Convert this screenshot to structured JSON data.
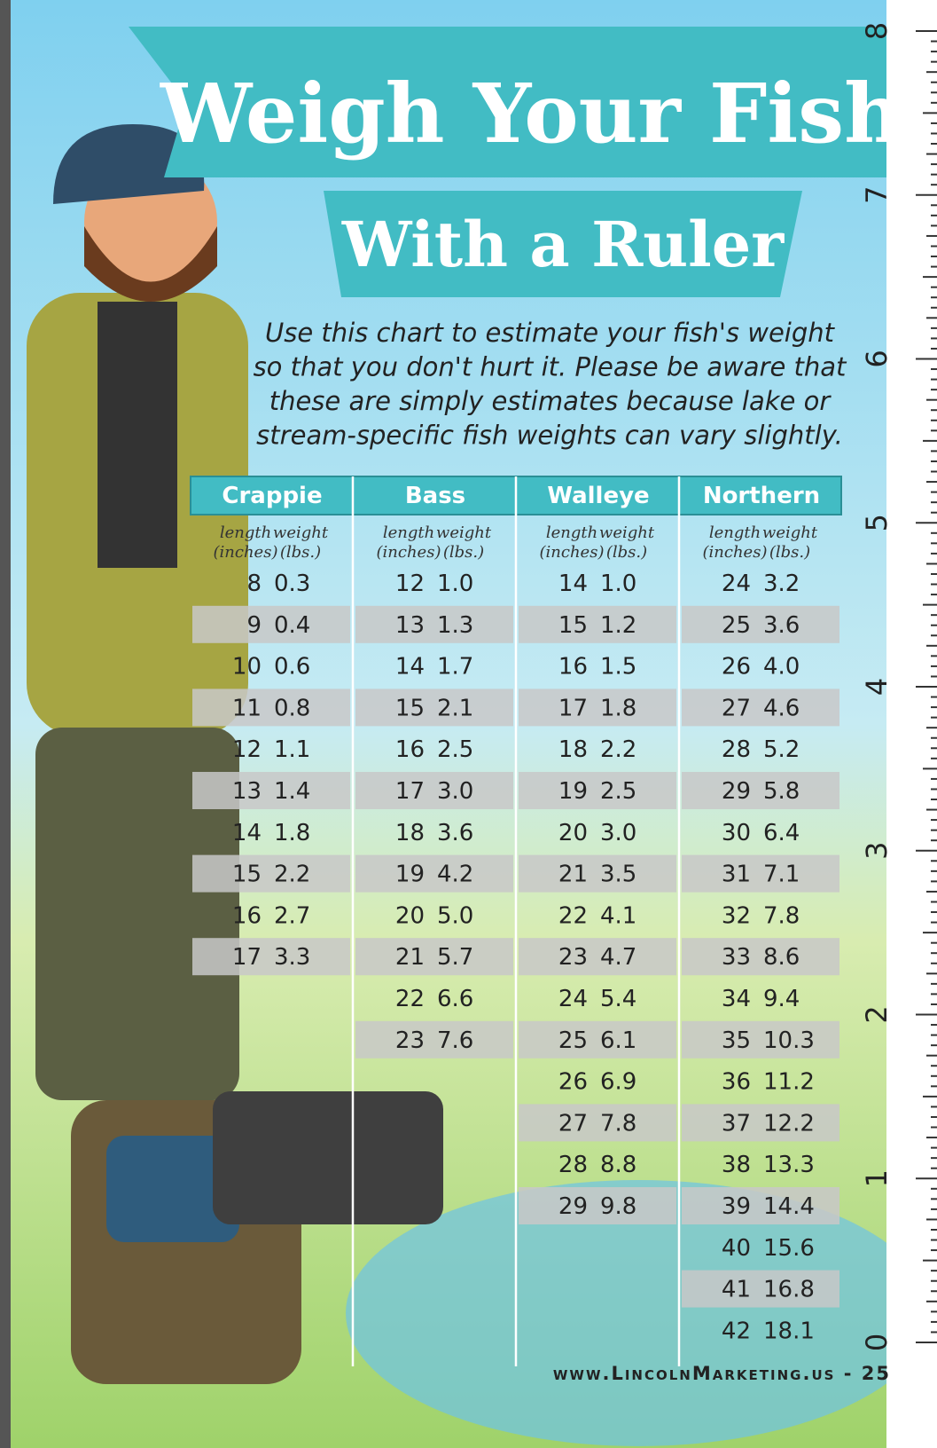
{
  "header": {
    "title": "Weigh Your Fish",
    "subtitle": "With a Ruler"
  },
  "intro": {
    "lines": [
      "Use this chart to estimate your fish's weight",
      "so that you don't hurt it. Please be aware that",
      "these are simply estimates because lake or",
      "stream-specific fish weights can vary slightly."
    ]
  },
  "table": {
    "column_headers": {
      "length": [
        "length",
        "(inches)"
      ],
      "weight": [
        "weight",
        "(lbs.)"
      ]
    },
    "fish": [
      {
        "name": "Crappie",
        "rows": [
          [
            "8",
            "0.3"
          ],
          [
            "9",
            "0.4"
          ],
          [
            "10",
            "0.6"
          ],
          [
            "11",
            "0.8"
          ],
          [
            "12",
            "1.1"
          ],
          [
            "13",
            "1.4"
          ],
          [
            "14",
            "1.8"
          ],
          [
            "15",
            "2.2"
          ],
          [
            "16",
            "2.7"
          ],
          [
            "17",
            "3.3"
          ]
        ]
      },
      {
        "name": "Bass",
        "rows": [
          [
            "12",
            "1.0"
          ],
          [
            "13",
            "1.3"
          ],
          [
            "14",
            "1.7"
          ],
          [
            "15",
            "2.1"
          ],
          [
            "16",
            "2.5"
          ],
          [
            "17",
            "3.0"
          ],
          [
            "18",
            "3.6"
          ],
          [
            "19",
            "4.2"
          ],
          [
            "20",
            "5.0"
          ],
          [
            "21",
            "5.7"
          ],
          [
            "22",
            "6.6"
          ],
          [
            "23",
            "7.6"
          ]
        ]
      },
      {
        "name": "Walleye",
        "rows": [
          [
            "14",
            "1.0"
          ],
          [
            "15",
            "1.2"
          ],
          [
            "16",
            "1.5"
          ],
          [
            "17",
            "1.8"
          ],
          [
            "18",
            "2.2"
          ],
          [
            "19",
            "2.5"
          ],
          [
            "20",
            "3.0"
          ],
          [
            "21",
            "3.5"
          ],
          [
            "22",
            "4.1"
          ],
          [
            "23",
            "4.7"
          ],
          [
            "24",
            "5.4"
          ],
          [
            "25",
            "6.1"
          ],
          [
            "26",
            "6.9"
          ],
          [
            "27",
            "7.8"
          ],
          [
            "28",
            "8.8"
          ],
          [
            "29",
            "9.8"
          ]
        ]
      },
      {
        "name": "Northern",
        "rows": [
          [
            "24",
            "3.2"
          ],
          [
            "25",
            "3.6"
          ],
          [
            "26",
            "4.0"
          ],
          [
            "27",
            "4.6"
          ],
          [
            "28",
            "5.2"
          ],
          [
            "29",
            "5.8"
          ],
          [
            "30",
            "6.4"
          ],
          [
            "31",
            "7.1"
          ],
          [
            "32",
            "7.8"
          ],
          [
            "33",
            "8.6"
          ],
          [
            "34",
            "9.4"
          ],
          [
            "35",
            "10.3"
          ],
          [
            "36",
            "11.2"
          ],
          [
            "37",
            "12.2"
          ],
          [
            "38",
            "13.3"
          ],
          [
            "39",
            "14.4"
          ],
          [
            "40",
            "15.6"
          ],
          [
            "41",
            "16.8"
          ],
          [
            "42",
            "18.1"
          ]
        ]
      }
    ]
  },
  "ruler": {
    "labels": [
      "8",
      "7",
      "6",
      "5",
      "4",
      "3",
      "2",
      "1",
      "0"
    ]
  },
  "footer": {
    "text": "www.LincolnMarketing.us - 25"
  }
}
